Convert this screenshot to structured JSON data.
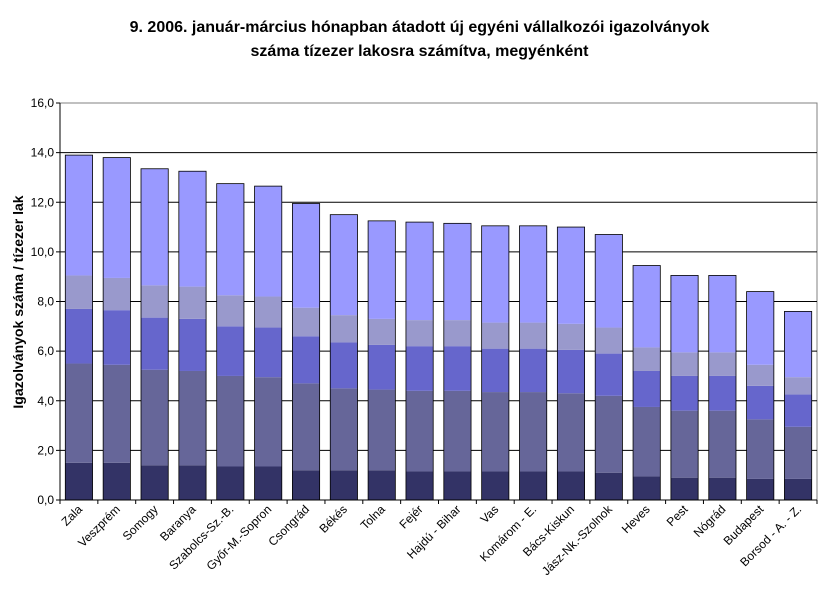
{
  "chart_data": {
    "type": "bar",
    "stacked": true,
    "title_lines": [
      "9.   2006. január-március hónapban átadott új egyéni vállalkozói  igazolványok",
      "száma tízezer lakosra számítva, megyénként"
    ],
    "xlabel": "",
    "ylabel": "Igazolványok száma / tízezer lak",
    "ylim": [
      0,
      16
    ],
    "yticks": [
      "0,0",
      "2,0",
      "4,0",
      "6,0",
      "8,0",
      "10,0",
      "12,0",
      "14,0",
      "16,0"
    ],
    "grid": true,
    "legend": "none",
    "categories": [
      "Zala",
      "Veszprém",
      "Somogy",
      "Baranya",
      "Szabolcs-Sz.-B.",
      "Győr-M.-Sopron",
      "Csongrád",
      "Békés",
      "Tolna",
      "Fejér",
      "Hajdú - Bihar",
      "Vas",
      "Komárom - E.",
      "Bács-Kiskun",
      "Jász-Nk.-Szolnok",
      "Heves",
      "Pest",
      "Nógrád",
      "Budapest",
      "Borsod - A. - Z."
    ],
    "series": [
      {
        "color": "#333366",
        "values": [
          1.5,
          1.5,
          1.4,
          1.4,
          1.35,
          1.35,
          1.2,
          1.2,
          1.2,
          1.15,
          1.15,
          1.15,
          1.15,
          1.15,
          1.1,
          0.95,
          0.9,
          0.9,
          0.85,
          0.85
        ]
      },
      {
        "color": "#666699",
        "values": [
          4.0,
          3.95,
          3.85,
          3.8,
          3.65,
          3.6,
          3.5,
          3.3,
          3.25,
          3.25,
          3.25,
          3.2,
          3.2,
          3.15,
          3.1,
          2.8,
          2.7,
          2.7,
          2.4,
          2.1
        ]
      },
      {
        "color": "#6666CC",
        "values": [
          2.2,
          2.2,
          2.1,
          2.1,
          2.0,
          2.0,
          1.9,
          1.85,
          1.8,
          1.8,
          1.8,
          1.75,
          1.75,
          1.75,
          1.7,
          1.45,
          1.4,
          1.4,
          1.35,
          1.3
        ]
      },
      {
        "color": "#9999CC",
        "values": [
          1.35,
          1.3,
          1.3,
          1.3,
          1.25,
          1.25,
          1.15,
          1.1,
          1.05,
          1.05,
          1.05,
          1.05,
          1.05,
          1.05,
          1.05,
          0.95,
          0.95,
          0.95,
          0.85,
          0.7
        ]
      },
      {
        "color": "#9999FF",
        "values": [
          4.85,
          4.85,
          4.7,
          4.65,
          4.5,
          4.45,
          4.2,
          4.05,
          3.95,
          3.95,
          3.9,
          3.9,
          3.9,
          3.9,
          3.75,
          3.3,
          3.1,
          3.1,
          2.95,
          2.65
        ]
      }
    ]
  }
}
